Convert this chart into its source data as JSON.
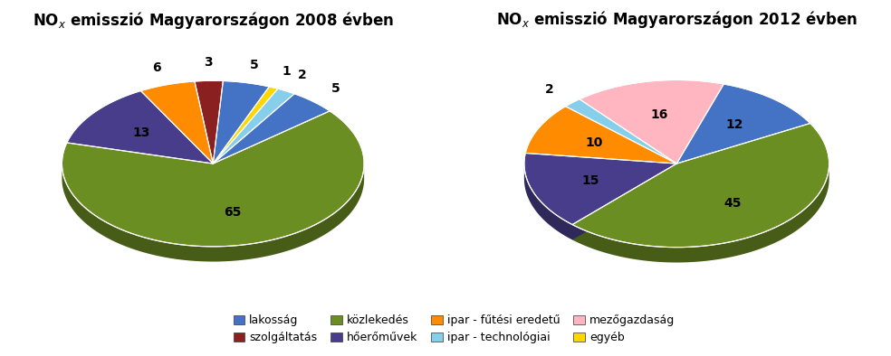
{
  "chart1_title": "NO$_x$ emisszió Magyarországon 2008 évben",
  "chart2_title": "NO$_x$ emisszió Magyarországon 2012 évben",
  "chart1_values": [
    3,
    5,
    1,
    2,
    5,
    65,
    13,
    6
  ],
  "chart1_colors": [
    "#8B2020",
    "#4472C4",
    "#FFD700",
    "#87CEEB",
    "#4472C4",
    "#6B8E23",
    "#483D8B",
    "#FF8C00"
  ],
  "chart1_labels": [
    "3",
    "5",
    "1",
    "2",
    "5",
    "65",
    "13",
    "6"
  ],
  "chart1_startangle": 97,
  "chart2_values": [
    12,
    45,
    15,
    10,
    2,
    16
  ],
  "chart2_colors": [
    "#4472C4",
    "#6B8E23",
    "#483D8B",
    "#FF8C00",
    "#87CEEB",
    "#FFB6C1"
  ],
  "chart2_labels": [
    "12",
    "45",
    "15",
    "10",
    "2",
    "16"
  ],
  "chart2_startangle": 72,
  "legend_labels": [
    "lakosság",
    "szolgáltatás",
    "közlekedés",
    "hőerőművek",
    "ipar - fűtési eredetű",
    "ipar - technológiai",
    "mezőgazdaság",
    "egyéb"
  ],
  "legend_colors": [
    "#4472C4",
    "#8B2020",
    "#6B8E23",
    "#483D8B",
    "#FF8C00",
    "#87CEEB",
    "#FFB6C1",
    "#FFD700"
  ],
  "bg_color": "#FFFFFF",
  "label_fontsize": 10,
  "title_fontsize": 12
}
